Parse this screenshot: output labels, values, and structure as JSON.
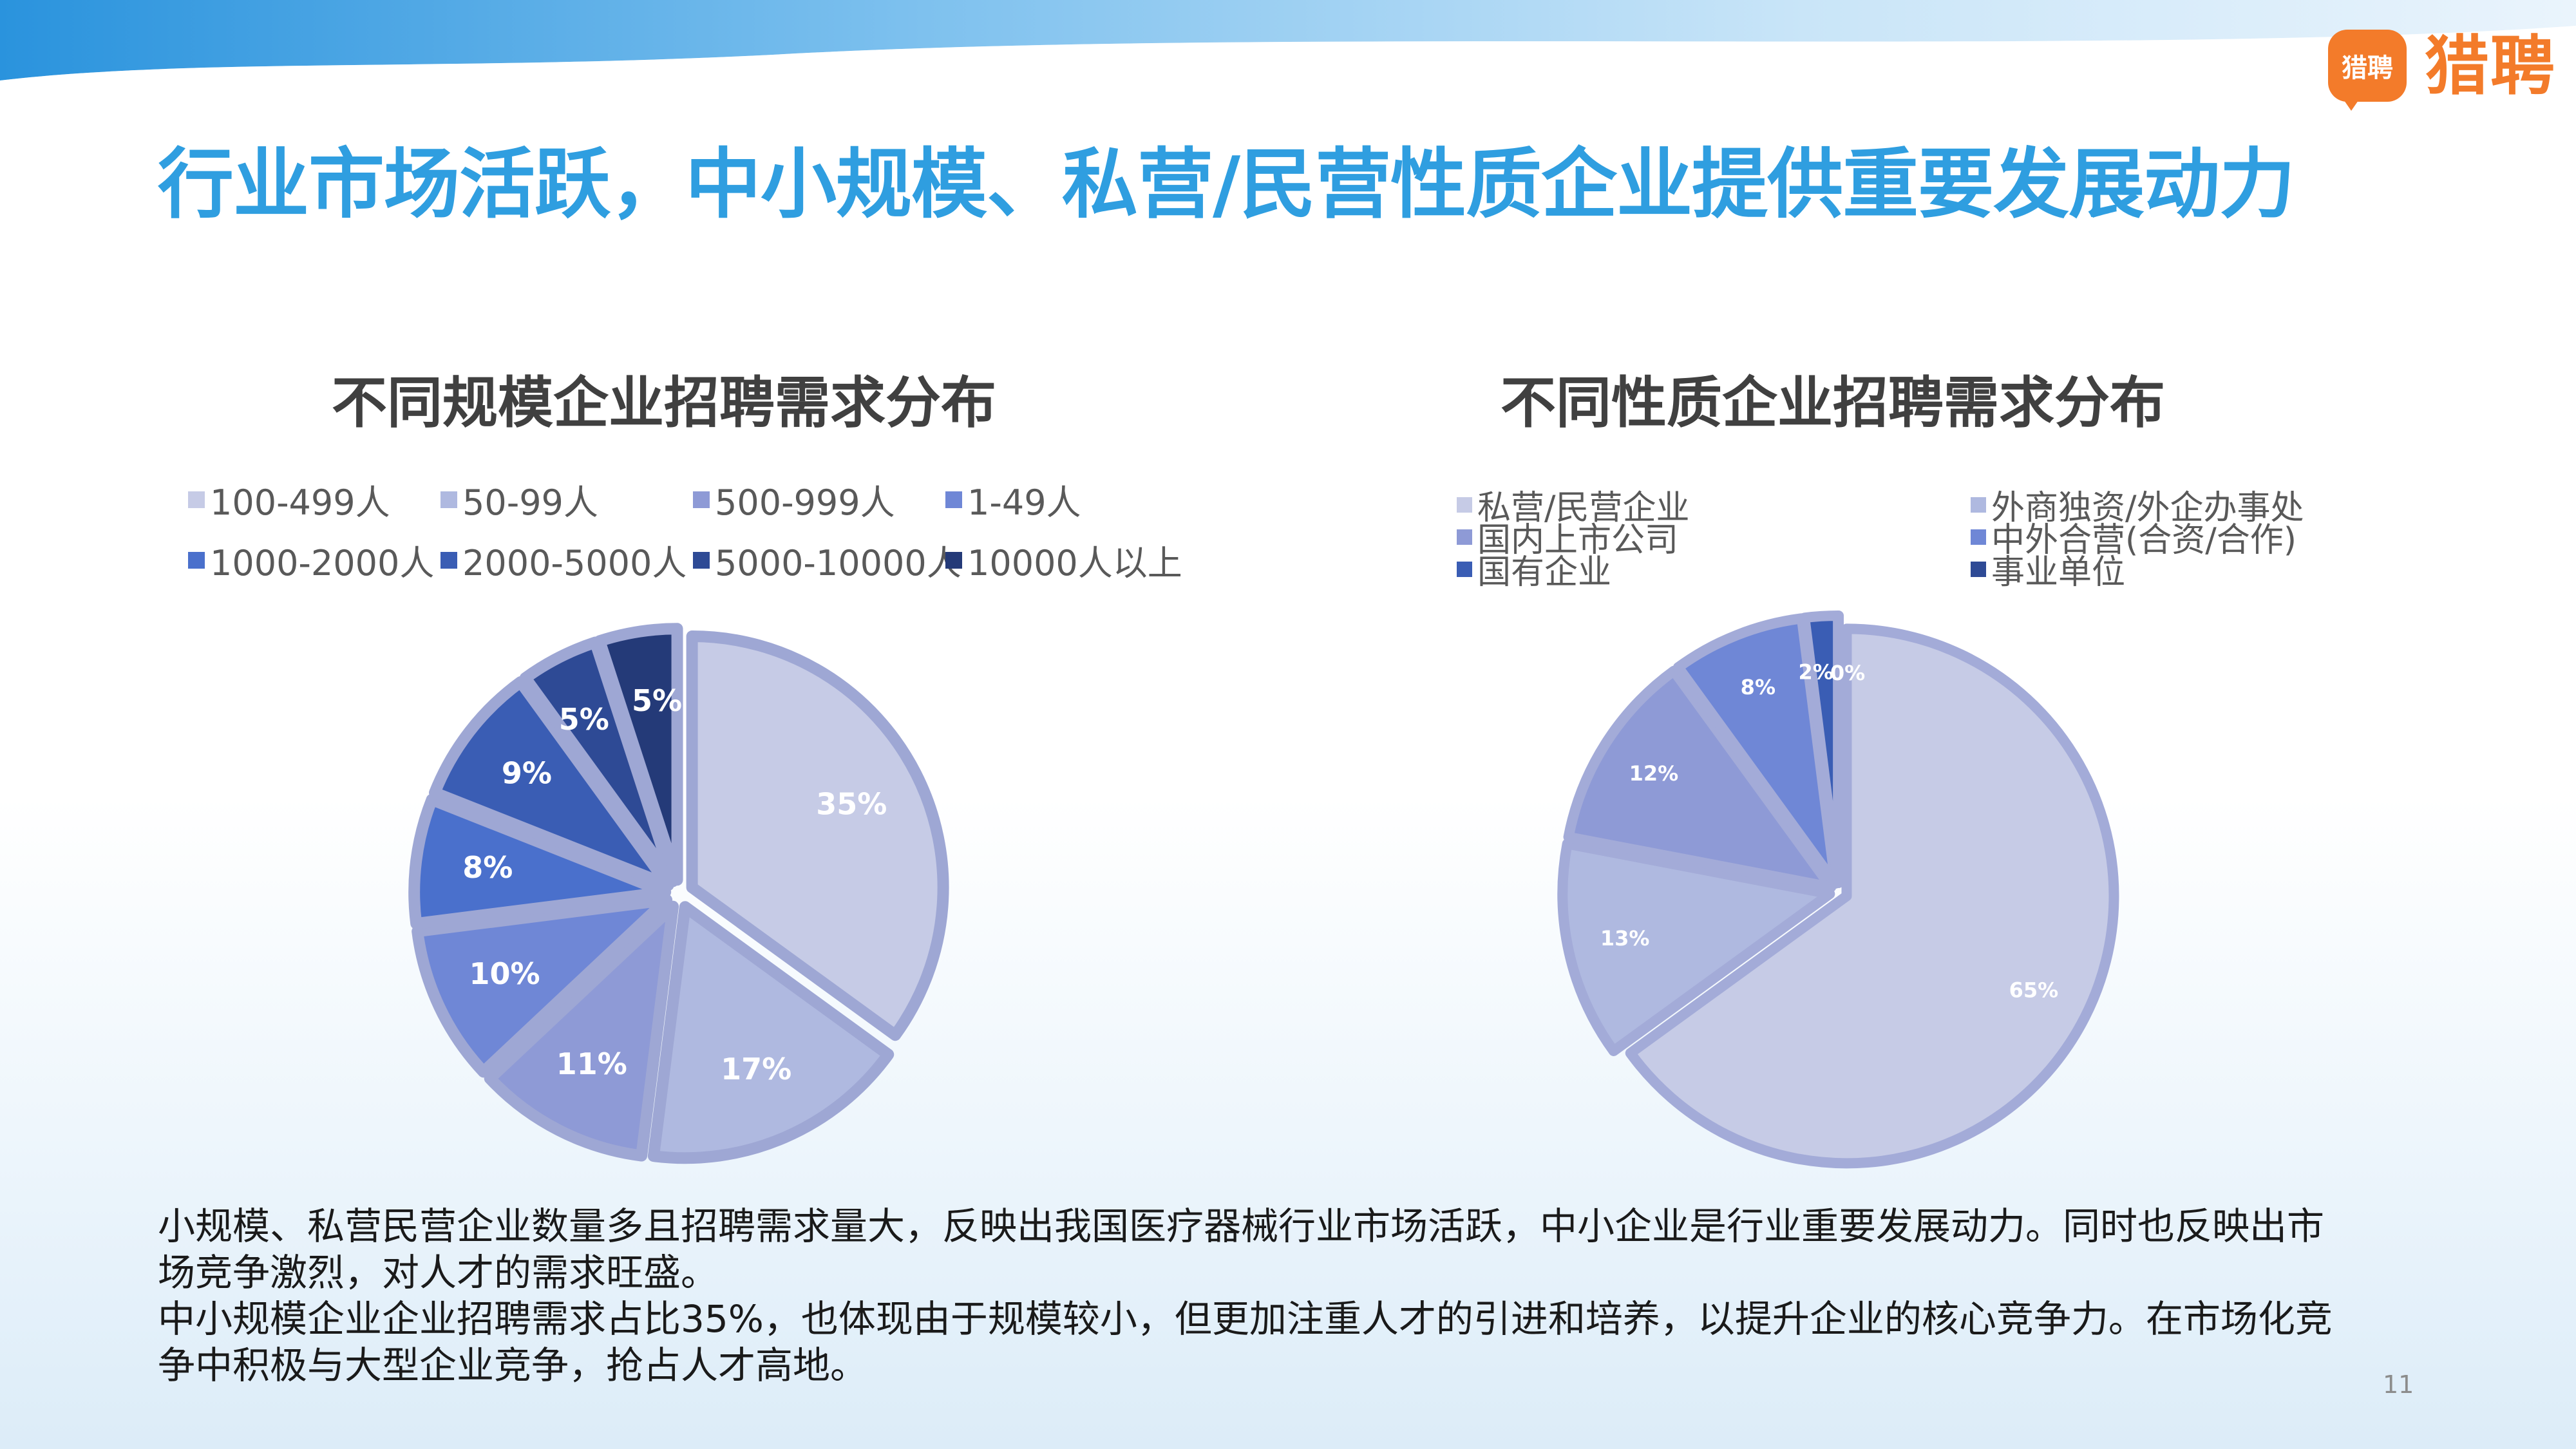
{
  "page": {
    "title": "行业市场活跃，中小规模、私营/民营性质企业提供重要发展动力",
    "logo_mark": "猎聘",
    "logo_text": "猎聘",
    "page_number": "11"
  },
  "summary": {
    "line1": "小规模、私营民营企业数量多且招聘需求量大，反映出我国医疗器械行业市场活跃，中小企业是行业重要发展动力。同时也反映出市场竞争激烈，对人才的需求旺盛。",
    "line2": "中小规模企业企业招聘需求占比35%，也体现由于规模较小，但更加注重人才的引进和培养，以提升企业的核心竞争力。在市场化竞争中积极与大型企业竞争，抢占人才高地。"
  },
  "colors": {
    "title_blue": "#2f9ee0",
    "logo_orange": "#f37b2a"
  },
  "chart_data": [
    {
      "type": "pie",
      "title": "不同规模企业招聘需求分布",
      "categories": [
        "100-499人",
        "50-99人",
        "500-999人",
        "1-49人",
        "1000-2000人",
        "2000-5000人",
        "5000-10000人",
        "10000人以上"
      ],
      "values": [
        35,
        17,
        11,
        10,
        8,
        9,
        5,
        5
      ],
      "labels": [
        "35%",
        "17%",
        "11%",
        "10%",
        "8%",
        "9%",
        "5%",
        "5%"
      ],
      "colors": [
        "#c6cbe6",
        "#afb9e0",
        "#8e9ad6",
        "#6f87d6",
        "#4a70cc",
        "#3a5db4",
        "#2e4a95",
        "#243a78"
      ],
      "legend_position": "top"
    },
    {
      "type": "pie",
      "title": "不同性质企业招聘需求分布",
      "categories": [
        "私营/民营企业",
        "外商独资/外企办事处",
        "国内上市公司",
        "中外合营(合资/合作)",
        "国有企业",
        "事业单位"
      ],
      "values": [
        65,
        13,
        12,
        8,
        2,
        0
      ],
      "labels": [
        "65%",
        "13%",
        "12%",
        "8%",
        "2%",
        "0%"
      ],
      "colors": [
        "#c6cbe6",
        "#afb9e0",
        "#8e9ad6",
        "#6f87d6",
        "#3a5db4",
        "#2e4a95"
      ],
      "legend_position": "top"
    }
  ]
}
